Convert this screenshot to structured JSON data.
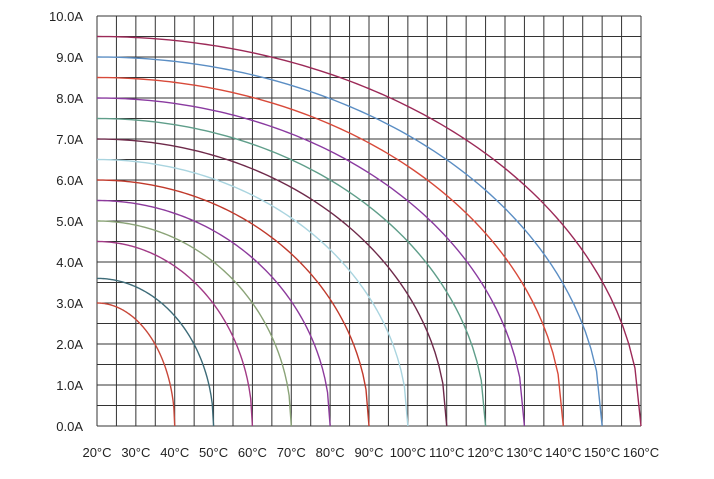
{
  "chart_data": {
    "type": "line",
    "title": "",
    "xlabel": "",
    "ylabel": "",
    "xlim": [
      20,
      160
    ],
    "ylim": [
      0,
      10
    ],
    "x_tick_labels": [
      "20°C",
      "30°C",
      "40°C",
      "50°C",
      "60°C",
      "70°C",
      "80°C",
      "90°C",
      "100°C",
      "110°C",
      "120°C",
      "130°C",
      "140°C",
      "150°C",
      "160°C"
    ],
    "y_tick_labels": [
      "0.0A",
      "1.0A",
      "2.0A",
      "3.0A",
      "4.0A",
      "5.0A",
      "6.0A",
      "7.0A",
      "8.0A",
      "9.0A",
      "10.0A"
    ],
    "grid": true,
    "legend": "none",
    "series": [
      {
        "color": "#c8483a",
        "current_at_20C": 3.0,
        "end_temp": 40
      },
      {
        "color": "#3d6b78",
        "current_at_20C": 3.6,
        "end_temp": 50
      },
      {
        "color": "#a23a86",
        "current_at_20C": 4.5,
        "end_temp": 60
      },
      {
        "color": "#8aa377",
        "current_at_20C": 5.0,
        "end_temp": 70
      },
      {
        "color": "#8c3a9c",
        "current_at_20C": 5.5,
        "end_temp": 80
      },
      {
        "color": "#c0392b",
        "current_at_20C": 6.0,
        "end_temp": 90
      },
      {
        "color": "#a9d4df",
        "current_at_20C": 6.5,
        "end_temp": 100
      },
      {
        "color": "#6e2a4a",
        "current_at_20C": 7.0,
        "end_temp": 110
      },
      {
        "color": "#5f9e8a",
        "current_at_20C": 7.5,
        "end_temp": 120
      },
      {
        "color": "#8a3aa0",
        "current_at_20C": 8.0,
        "end_temp": 130
      },
      {
        "color": "#d84a3a",
        "current_at_20C": 8.5,
        "end_temp": 140
      },
      {
        "color": "#5b8ec4",
        "current_at_20C": 9.0,
        "end_temp": 150
      },
      {
        "color": "#9c2a58",
        "current_at_20C": 9.5,
        "end_temp": 160
      }
    ]
  }
}
